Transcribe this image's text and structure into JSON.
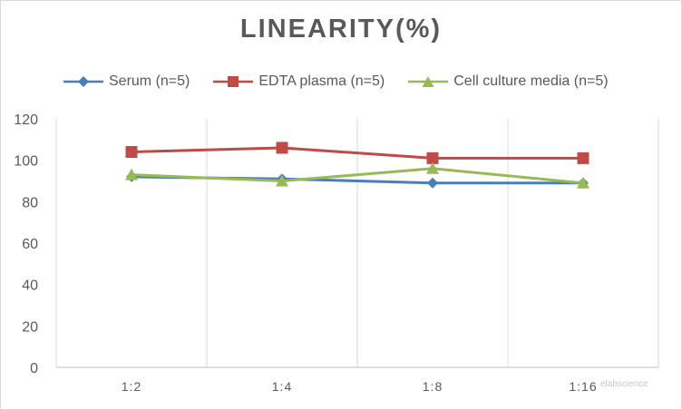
{
  "chart_data": {
    "type": "line",
    "title": "LINEARITY(%)",
    "categories": [
      "1:2",
      "1:4",
      "1:8",
      "1:16"
    ],
    "ylim": [
      0,
      120
    ],
    "yticks": [
      0,
      20,
      40,
      60,
      80,
      100,
      120
    ],
    "grid": "vertical",
    "legend_position": "top",
    "series": [
      {
        "name": "Serum (n=5)",
        "values": [
          92,
          91,
          89,
          89
        ],
        "color": "#4a7ebb",
        "marker": "diamond"
      },
      {
        "name": "EDTA plasma (n=5)",
        "values": [
          104,
          106,
          101,
          101
        ],
        "color": "#be4b48",
        "marker": "square"
      },
      {
        "name": "Cell culture media (n=5)",
        "values": [
          93,
          90,
          96,
          89
        ],
        "color": "#98b954",
        "marker": "triangle"
      }
    ]
  },
  "watermark": "elabscience"
}
